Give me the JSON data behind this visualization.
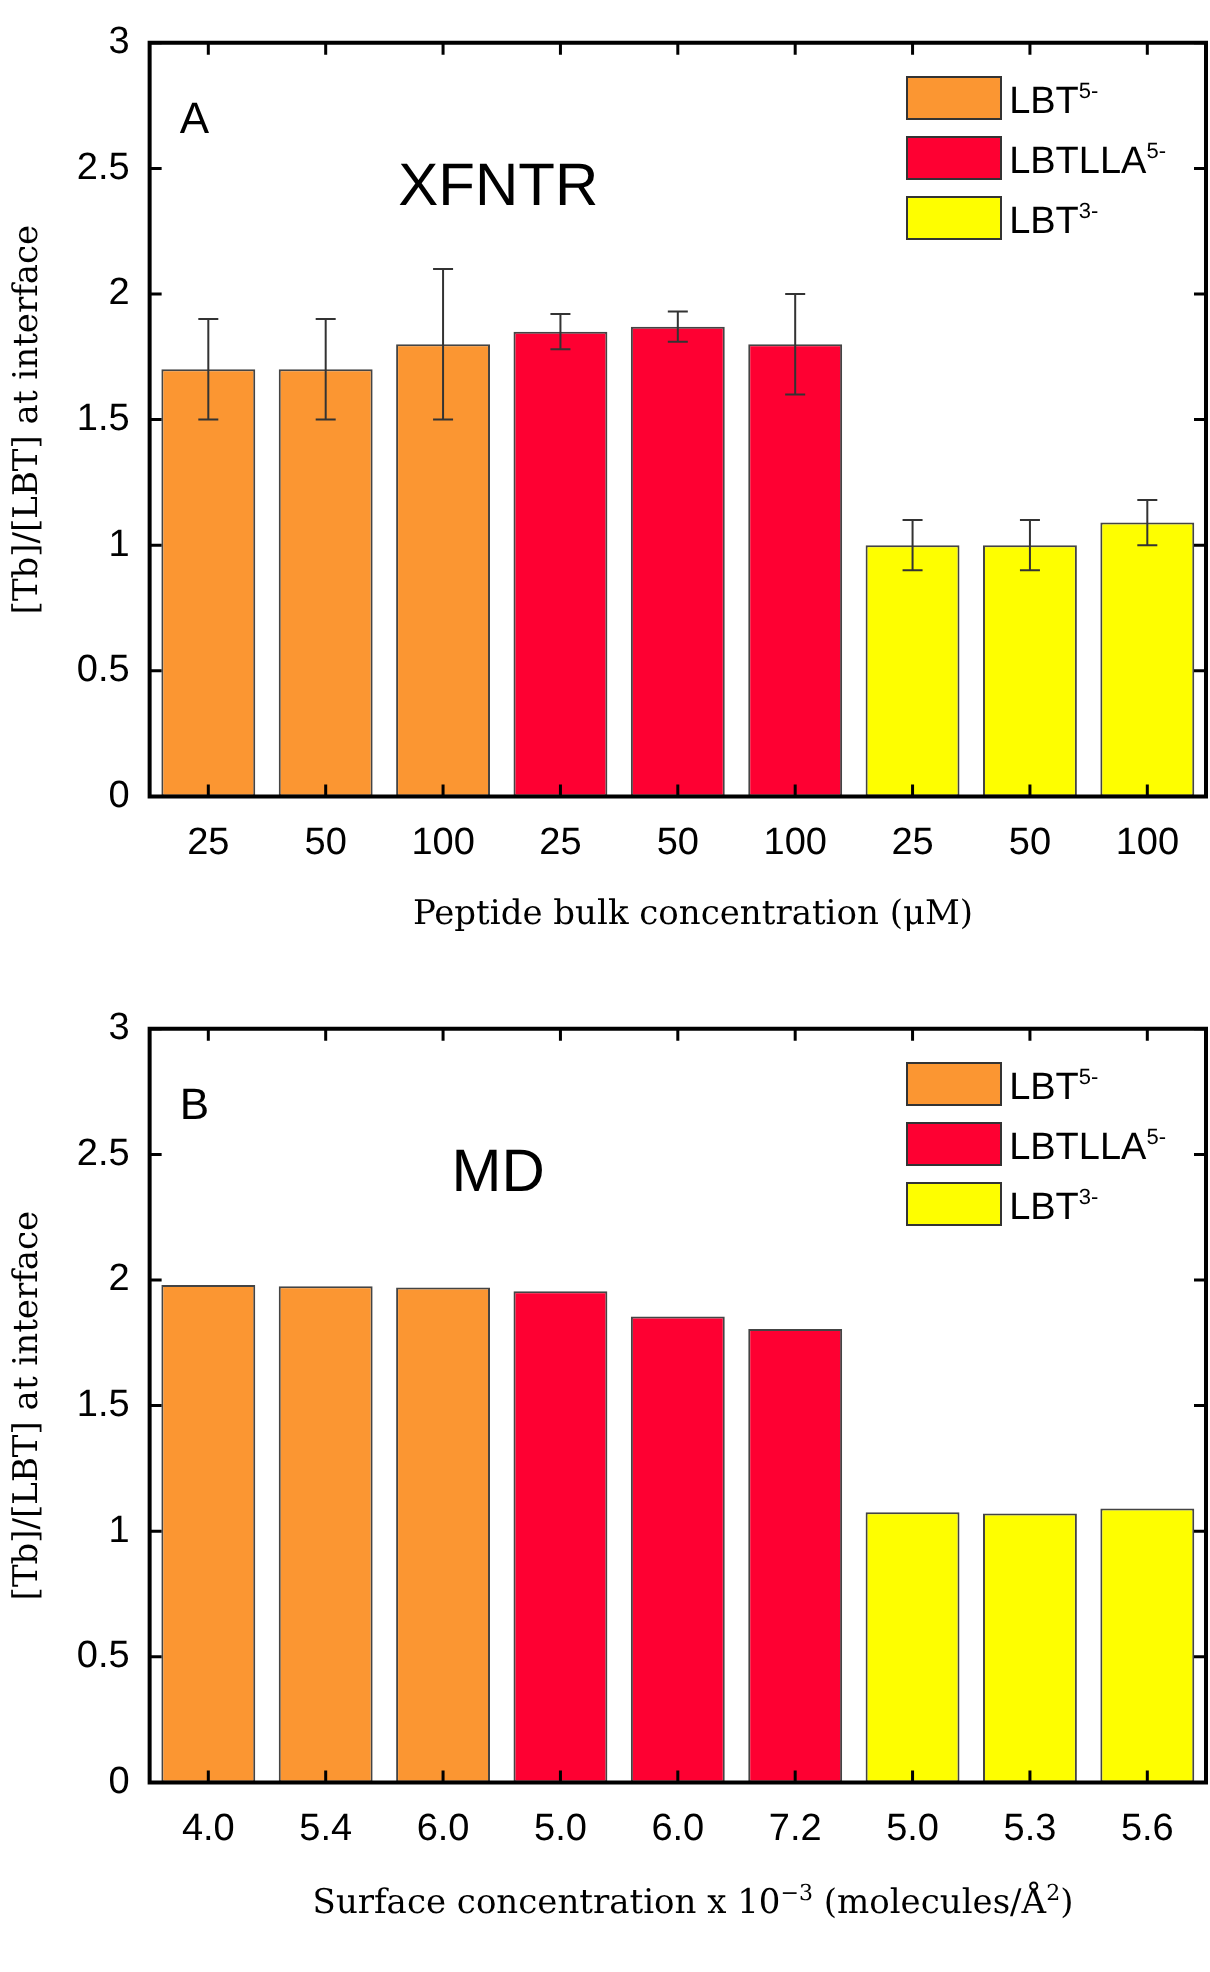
{
  "chart_data": [
    {
      "type": "bar",
      "title": "XFNTR",
      "annotations": [
        "A"
      ],
      "xlabel": "Peptide bulk concentration (μM)",
      "ylabel": "[Tb]/[LBT] at interface",
      "categories": [
        "25",
        "50",
        "100",
        "25",
        "50",
        "100",
        "25",
        "50",
        "100"
      ],
      "series": [
        {
          "name": "LBT$^{5-}$",
          "color": "#fb9632",
          "values": [
            1.7,
            1.7,
            1.8,
            null,
            null,
            null,
            null,
            null,
            null
          ],
          "errors": [
            [
              1.5,
              1.9
            ],
            [
              1.5,
              1.9
            ],
            [
              1.5,
              2.1
            ],
            null,
            null,
            null,
            null,
            null,
            null
          ]
        },
        {
          "name": "LBTLLA$^{5-}$",
          "color": "#fe0032",
          "values": [
            null,
            null,
            null,
            1.85,
            1.87,
            1.8,
            null,
            null,
            null
          ],
          "errors": [
            null,
            null,
            null,
            [
              1.78,
              1.92
            ],
            [
              1.81,
              1.93
            ],
            [
              1.6,
              2.0
            ],
            null,
            null,
            null
          ]
        },
        {
          "name": "LBT$^{3-}$",
          "color": "#fefe00",
          "values": [
            null,
            null,
            null,
            null,
            null,
            null,
            1.0,
            1.0,
            1.09
          ],
          "errors": [
            null,
            null,
            null,
            null,
            null,
            null,
            [
              0.9,
              1.1
            ],
            [
              0.9,
              1.1
            ],
            [
              1.0,
              1.18
            ]
          ]
        }
      ],
      "ylim": [
        0,
        3
      ],
      "yticks": [
        0,
        0.5,
        1,
        1.5,
        2,
        2.5,
        3
      ],
      "legend": "top right"
    },
    {
      "type": "bar",
      "title": "MD",
      "annotations": [
        "B"
      ],
      "xlabel": "Surface concentration x 10$^{−3}$ (molecules/Å$^{2}$)",
      "ylabel": "[Tb]/[LBT] at interface",
      "categories": [
        "4.0",
        "5.4",
        "6.0",
        "5.0",
        "6.0",
        "7.2",
        "5.0",
        "5.3",
        "5.6"
      ],
      "series": [
        {
          "name": "LBT$^{5-}$",
          "color": "#fb9632",
          "values": [
            1.98,
            1.975,
            1.97,
            null,
            null,
            null,
            null,
            null,
            null
          ]
        },
        {
          "name": "LBTLLA$^{5-}$",
          "color": "#fe0032",
          "values": [
            null,
            null,
            null,
            1.955,
            1.855,
            1.805,
            null,
            null,
            null
          ]
        },
        {
          "name": "LBT$^{3-}$",
          "color": "#fefe00",
          "values": [
            null,
            null,
            null,
            null,
            null,
            null,
            1.075,
            1.07,
            1.09
          ]
        }
      ],
      "ylim": [
        0,
        3
      ],
      "yticks": [
        0,
        0.5,
        1,
        1.5,
        2,
        2.5,
        3
      ],
      "legend": "top right"
    }
  ]
}
